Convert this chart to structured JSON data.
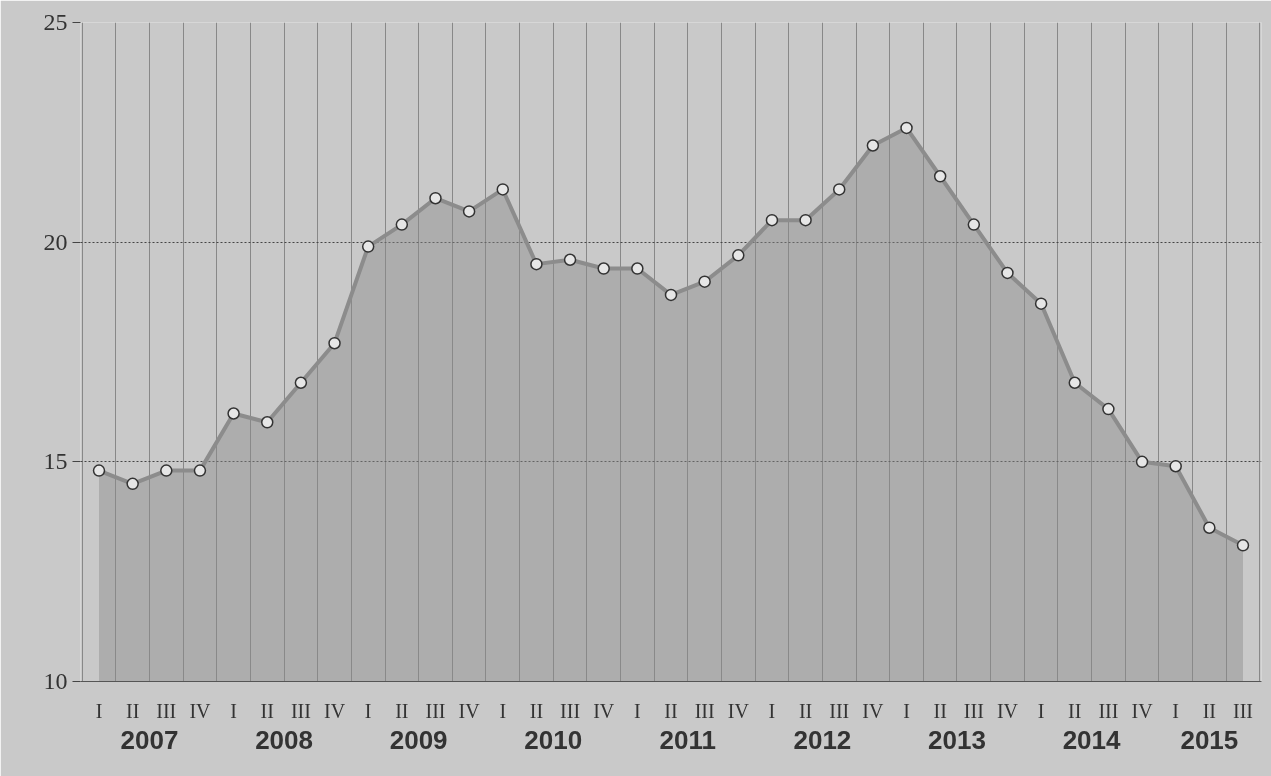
{
  "chart_data": {
    "type": "area",
    "categories": [
      "I",
      "II",
      "III",
      "IV",
      "I",
      "II",
      "III",
      "IV",
      "I",
      "II",
      "III",
      "IV",
      "I",
      "II",
      "III",
      "IV",
      "I",
      "II",
      "III",
      "IV",
      "I",
      "II",
      "III",
      "IV",
      "I",
      "II",
      "III",
      "IV",
      "I",
      "II",
      "III",
      "IV",
      "I",
      "II",
      "III"
    ],
    "series": [
      {
        "color": "#8c8c8c",
        "values": [
          14.8,
          14.5,
          14.8,
          14.8,
          16.1,
          15.9,
          16.8,
          17.7,
          19.9,
          20.4,
          21.0,
          20.7,
          21.2,
          19.5,
          19.6,
          19.4,
          19.4,
          18.8,
          19.1,
          19.7,
          20.5,
          20.5,
          21.2,
          22.2,
          22.6,
          21.5,
          20.4,
          19.3,
          18.6,
          16.8,
          16.2,
          15.0,
          14.9,
          13.5,
          13.1
        ]
      }
    ],
    "annotations": [
      "2007",
      "2008",
      "2009",
      "2010",
      "2011",
      "2012",
      "2013",
      "2014",
      "2015"
    ],
    "ylim": [
      10,
      25
    ],
    "yticks": [
      10,
      15,
      20,
      25
    ],
    "grid": true,
    "marker": "circle",
    "line_style": "solid"
  }
}
